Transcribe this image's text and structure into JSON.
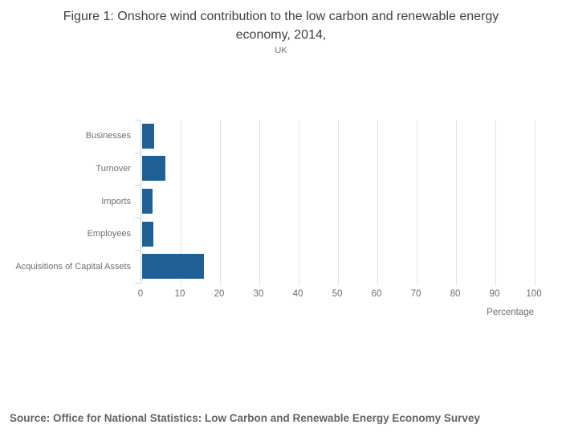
{
  "title": "Figure 1: Onshore wind contribution to the low carbon and renewable energy economy, 2014,",
  "subtitle": "UK",
  "source": "Source: Office for National Statistics: Low Carbon and Renewable Energy Economy Survey",
  "chart_data": {
    "type": "bar",
    "orientation": "horizontal",
    "title": "Figure 1: Onshore wind contribution to the low carbon and renewable energy economy, 2014,",
    "subtitle": "UK",
    "categories": [
      "Businesses",
      "Turnover",
      "Imports",
      "Employees",
      "Acquisitions of Capital Assets"
    ],
    "values": [
      3.1,
      6.0,
      2.6,
      2.9,
      15.7
    ],
    "xlabel": "Percentage",
    "ylabel": "",
    "xlim": [
      0,
      100
    ],
    "xticks": [
      0,
      10,
      20,
      30,
      40,
      50,
      60,
      70,
      80,
      90,
      100
    ],
    "grid": true,
    "legend": false,
    "bar_color": "#206095"
  }
}
